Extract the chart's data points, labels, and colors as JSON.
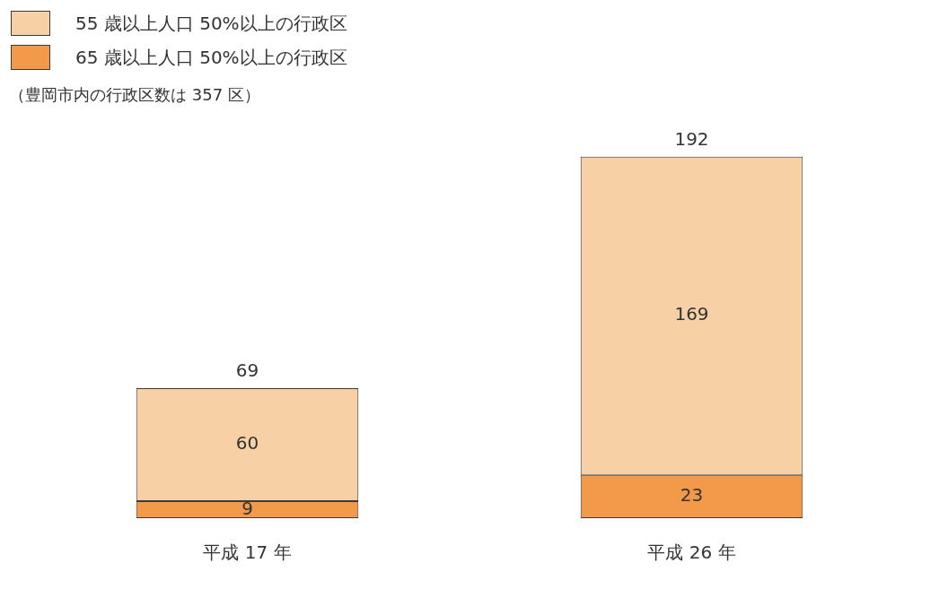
{
  "chart_data": {
    "type": "bar",
    "stacked": true,
    "categories": [
      "平成 17 年",
      "平成 26 年"
    ],
    "series": [
      {
        "name": "65 歳以上人口 50%以上の行政区",
        "color": "#f29a4a",
        "values": [
          9,
          23
        ]
      },
      {
        "name": "55 歳以上人口 50%以上の行政区",
        "color": "#f8d0a6",
        "values": [
          60,
          169
        ]
      }
    ],
    "data_labels": true,
    "totals": [
      "69",
      "192"
    ],
    "legend": "top left",
    "grid": false,
    "annotations": [
      "（豊岡市内の行政区数は 357 区）"
    ]
  }
}
